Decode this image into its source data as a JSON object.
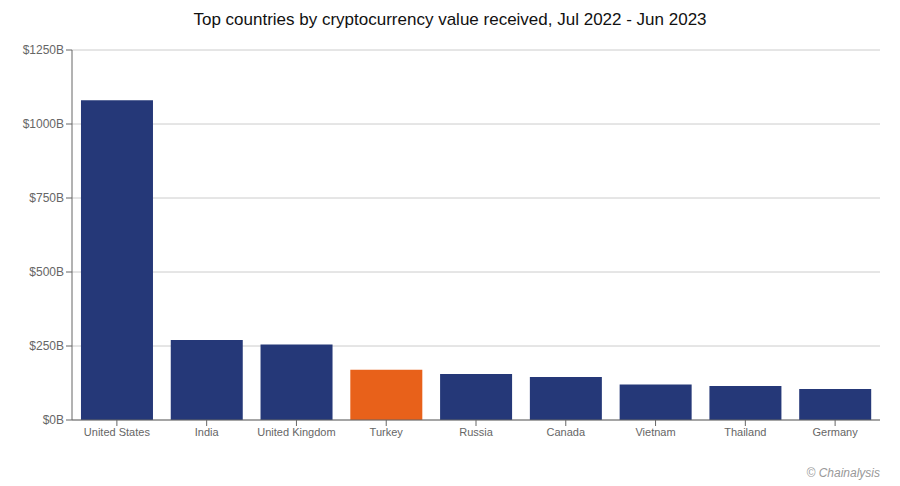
{
  "chart_data": {
    "type": "bar",
    "title": "Top countries by cryptocurrency value received, Jul 2022 - Jun 2023",
    "categories": [
      "United States",
      "India",
      "United Kingdom",
      "Turkey",
      "Russia",
      "Canada",
      "Vietnam",
      "Thailand",
      "Germany"
    ],
    "values": [
      1080,
      270,
      255,
      170,
      155,
      145,
      120,
      115,
      105
    ],
    "colors": [
      "#253878",
      "#253878",
      "#253878",
      "#E8611A",
      "#253878",
      "#253878",
      "#253878",
      "#253878",
      "#253878"
    ],
    "ylim": [
      0,
      1250
    ],
    "yticks": [
      {
        "value": 0,
        "label": "$0B"
      },
      {
        "value": 250,
        "label": "$250B"
      },
      {
        "value": 500,
        "label": "$500B"
      },
      {
        "value": 750,
        "label": "$750B"
      },
      {
        "value": 1000,
        "label": "$1000B"
      },
      {
        "value": 1250,
        "label": "$1250B"
      }
    ],
    "grid": true,
    "annotations": [
      "© Chainalysis"
    ]
  }
}
